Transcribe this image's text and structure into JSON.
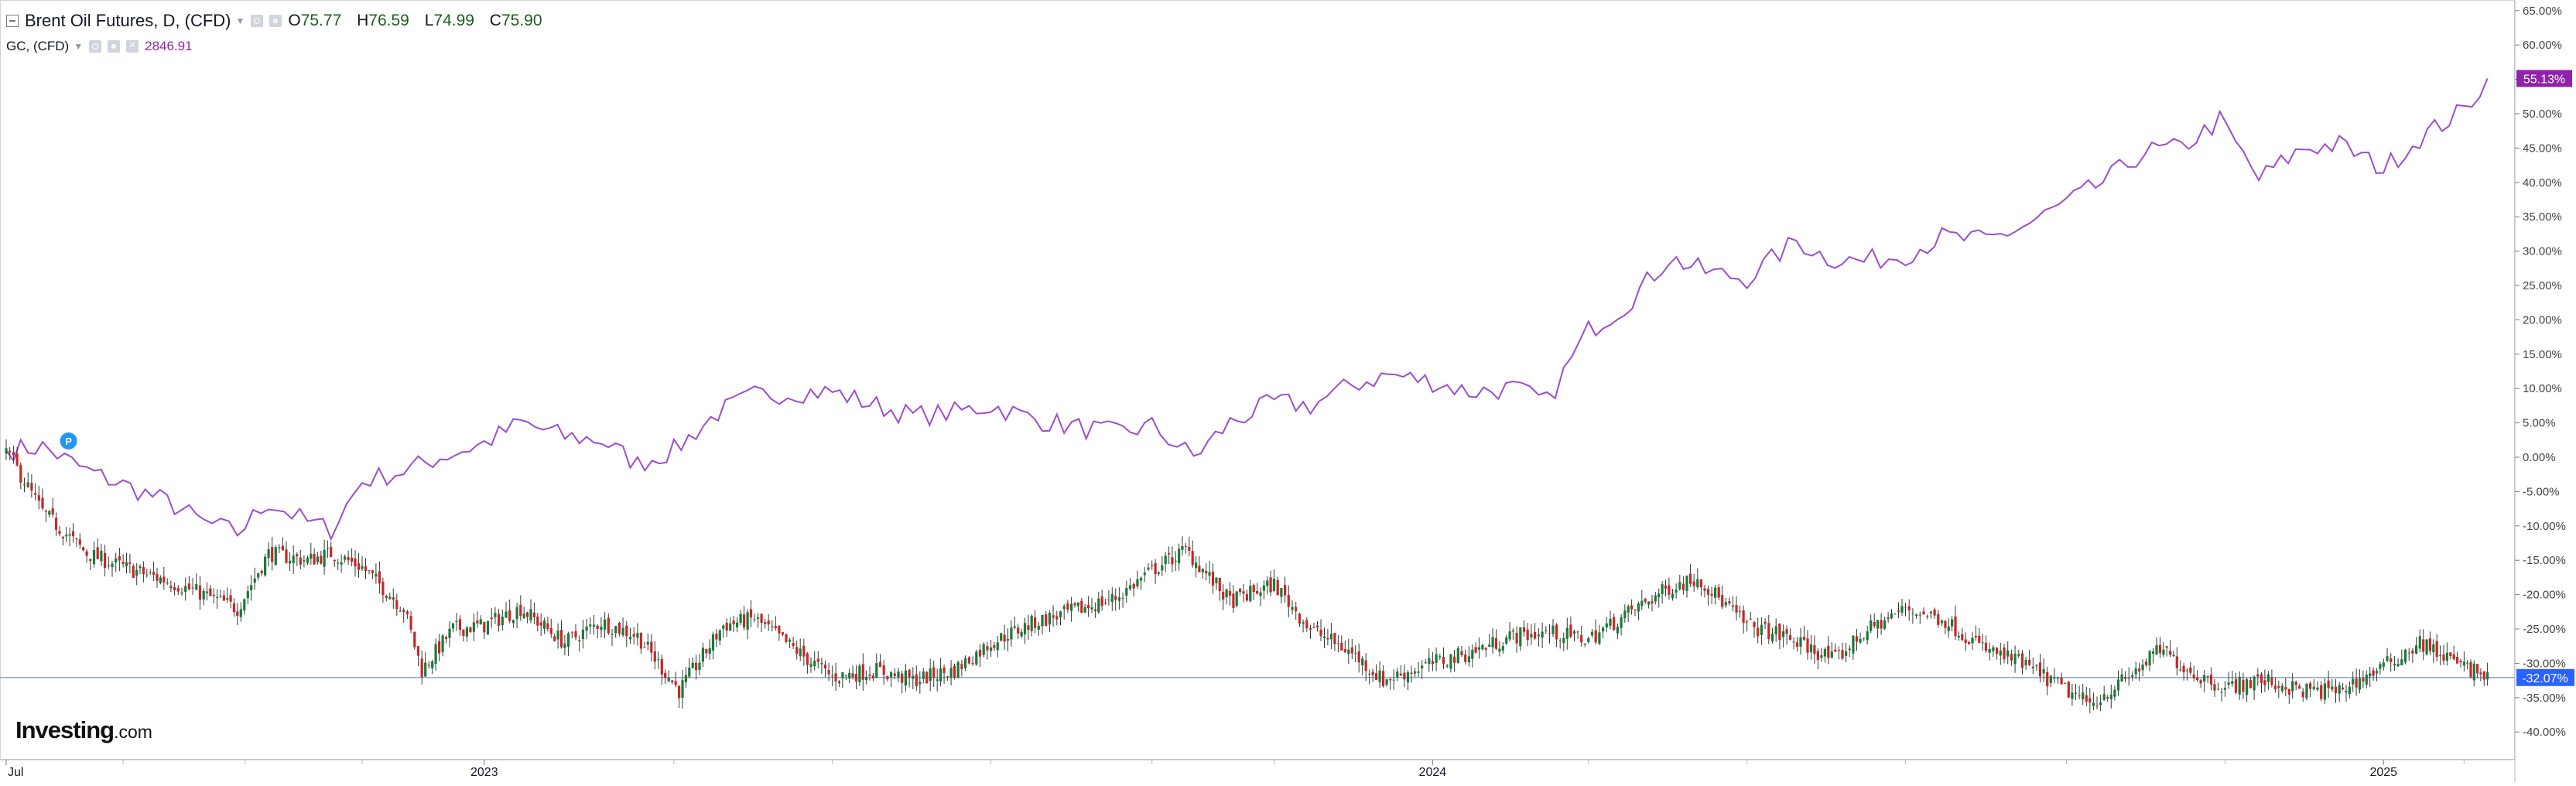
{
  "legend": {
    "main_title": "Brent Oil Futures, D, (CFD)",
    "open_label": "O",
    "open_value": "75.77",
    "high_label": "H",
    "high_value": "76.59",
    "low_label": "L",
    "low_value": "74.99",
    "close_label": "C",
    "close_value": "75.90",
    "compare_title": "GC, (CFD)",
    "compare_value": "2846.91"
  },
  "logo": {
    "main": "Investing",
    "suffix": ".com"
  },
  "marker": {
    "label": "P"
  },
  "colors": {
    "up_candle": "#26a69a",
    "up_candle_body": "#1b7a3a",
    "down_candle": "#c62828",
    "gold_line": "#9c4dcc",
    "gold_badge": "#8e24aa",
    "brent_badge": "#2962ff",
    "hline": "#90a4d4",
    "grid_axis": "#d1d4dc"
  },
  "chart_data": {
    "type": "line",
    "percent_scale": true,
    "yaxis": {
      "unit": "%",
      "ticks": [
        "65.00%",
        "60.00%",
        "55.00%",
        "50.00%",
        "45.00%",
        "40.00%",
        "35.00%",
        "30.00%",
        "25.00%",
        "20.00%",
        "15.00%",
        "10.00%",
        "5.00%",
        "0.00%",
        "-5.00%",
        "-10.00%",
        "-15.00%",
        "-20.00%",
        "-25.00%",
        "-30.00%",
        "-35.00%",
        "-40.00%"
      ],
      "ylim": [
        -42,
        66
      ]
    },
    "xaxis": {
      "ticks": [
        "Jul",
        "2023",
        "2024",
        "2025"
      ],
      "xlim": [
        "2022-07-01",
        "2025-02-14"
      ]
    },
    "grid": false,
    "series": [
      {
        "name": "GC, (CFD)",
        "style": "line",
        "last_label": "55.13%",
        "x": [
          "2022-07-01",
          "2022-07-15",
          "2022-08-01",
          "2022-08-15",
          "2022-09-01",
          "2022-09-15",
          "2022-09-28",
          "2022-10-10",
          "2022-10-25",
          "2022-11-03",
          "2022-11-15",
          "2022-12-01",
          "2022-12-15",
          "2023-01-01",
          "2023-01-15",
          "2023-02-01",
          "2023-02-15",
          "2023-03-01",
          "2023-03-15",
          "2023-04-01",
          "2023-04-15",
          "2023-05-01",
          "2023-05-15",
          "2023-06-01",
          "2023-06-15",
          "2023-07-01",
          "2023-07-15",
          "2023-08-01",
          "2023-08-15",
          "2023-09-01",
          "2023-09-15",
          "2023-10-01",
          "2023-10-15",
          "2023-11-01",
          "2023-11-15",
          "2023-12-01",
          "2023-12-15",
          "2024-01-01",
          "2024-01-15",
          "2024-02-01",
          "2024-02-14",
          "2024-03-01",
          "2024-03-15",
          "2024-04-01",
          "2024-04-15",
          "2024-05-01",
          "2024-05-20",
          "2024-06-01",
          "2024-06-15",
          "2024-07-01",
          "2024-07-15",
          "2024-08-01",
          "2024-08-15",
          "2024-09-01",
          "2024-09-15",
          "2024-10-01",
          "2024-10-15",
          "2024-10-30",
          "2024-11-14",
          "2024-12-01",
          "2024-12-15",
          "2025-01-01",
          "2025-01-15",
          "2025-02-01",
          "2025-02-10"
        ],
        "y": [
          1.0,
          1.5,
          -2.0,
          -4.0,
          -6.5,
          -9.5,
          -11.0,
          -6.5,
          -9.5,
          -10.5,
          -3.5,
          -2.0,
          0.0,
          2.0,
          5.0,
          3.0,
          2.5,
          -1.0,
          1.0,
          6.5,
          9.0,
          9.5,
          9.5,
          7.5,
          6.0,
          6.5,
          7.5,
          5.5,
          4.5,
          3.5,
          4.5,
          0.0,
          5.0,
          8.0,
          7.5,
          10.5,
          12.0,
          11.0,
          9.5,
          10.0,
          8.0,
          18.5,
          22.0,
          29.0,
          27.0,
          26.0,
          31.5,
          29.0,
          28.5,
          29.5,
          32.0,
          31.5,
          33.5,
          37.0,
          40.0,
          44.5,
          45.0,
          49.0,
          40.5,
          45.0,
          45.5,
          42.0,
          46.5,
          50.5,
          55.13
        ]
      },
      {
        "name": "Brent Oil Futures, D, (CFD)",
        "style": "candlestick",
        "last_label": "-32.07%",
        "x": [
          "2022-07-01",
          "2022-07-15",
          "2022-08-01",
          "2022-08-15",
          "2022-09-01",
          "2022-09-15",
          "2022-09-28",
          "2022-10-10",
          "2022-10-25",
          "2022-11-03",
          "2022-11-15",
          "2022-12-01",
          "2022-12-08",
          "2022-12-20",
          "2023-01-01",
          "2023-01-15",
          "2023-02-01",
          "2023-02-15",
          "2023-03-01",
          "2023-03-17",
          "2023-04-03",
          "2023-04-15",
          "2023-05-04",
          "2023-05-15",
          "2023-06-01",
          "2023-06-15",
          "2023-07-01",
          "2023-07-15",
          "2023-08-01",
          "2023-08-15",
          "2023-09-01",
          "2023-09-15",
          "2023-09-28",
          "2023-10-15",
          "2023-11-01",
          "2023-11-15",
          "2023-12-01",
          "2023-12-13",
          "2024-01-01",
          "2024-01-15",
          "2024-02-01",
          "2024-02-15",
          "2024-03-01",
          "2024-03-15",
          "2024-04-01",
          "2024-04-12",
          "2024-05-01",
          "2024-05-15",
          "2024-06-04",
          "2024-06-15",
          "2024-07-01",
          "2024-07-15",
          "2024-08-01",
          "2024-08-15",
          "2024-09-10",
          "2024-09-25",
          "2024-10-07",
          "2024-10-20",
          "2024-11-01",
          "2024-11-15",
          "2024-12-01",
          "2024-12-15",
          "2025-01-01",
          "2025-01-15",
          "2025-02-01",
          "2025-02-10"
        ],
        "y": [
          1.0,
          -8.0,
          -14.0,
          -16.0,
          -18.0,
          -20.0,
          -22.0,
          -14.0,
          -15.0,
          -14.0,
          -16.0,
          -22.0,
          -31.0,
          -25.0,
          -24.5,
          -22.0,
          -27.0,
          -24.0,
          -26.0,
          -34.0,
          -24.5,
          -23.5,
          -29.0,
          -32.0,
          -31.0,
          -32.5,
          -31.0,
          -27.0,
          -24.0,
          -22.5,
          -20.5,
          -16.5,
          -13.5,
          -21.0,
          -18.5,
          -25.0,
          -28.5,
          -32.5,
          -30.0,
          -28.5,
          -26.0,
          -25.5,
          -26.5,
          -23.0,
          -19.0,
          -17.5,
          -24.5,
          -26.0,
          -29.5,
          -25.5,
          -22.0,
          -23.5,
          -28.0,
          -30.0,
          -36.0,
          -32.0,
          -28.0,
          -31.5,
          -33.5,
          -32.5,
          -34.0,
          -34.0,
          -30.5,
          -27.0,
          -30.5,
          -32.07
        ]
      }
    ]
  }
}
